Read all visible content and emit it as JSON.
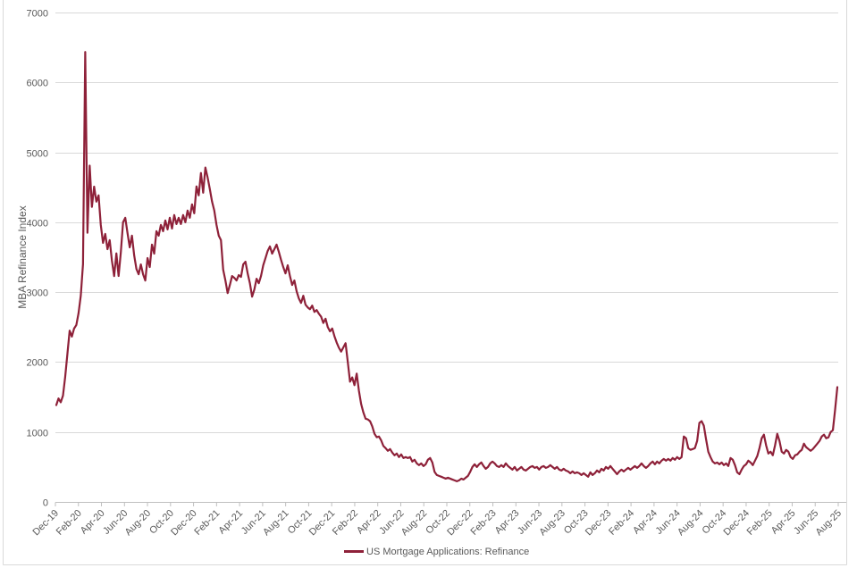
{
  "chart_data": {
    "type": "line",
    "title": "",
    "xlabel": "",
    "ylabel": "MBA Refinance Index",
    "ylim": [
      0,
      7000
    ],
    "yticks": [
      0,
      1000,
      2000,
      3000,
      4000,
      5000,
      6000,
      7000
    ],
    "x_tick_labels": [
      "Dec-19",
      "Feb-20",
      "Apr-20",
      "Jun-20",
      "Aug-20",
      "Oct-20",
      "Dec-20",
      "Feb-21",
      "Apr-21",
      "Jun-21",
      "Aug-21",
      "Oct-21",
      "Dec-21",
      "Feb-22",
      "Apr-22",
      "Jun-22",
      "Aug-22",
      "Oct-22",
      "Dec-22",
      "Feb-23",
      "Apr-23",
      "Jun-23",
      "Aug-23",
      "Oct-23",
      "Dec-23",
      "Feb-24",
      "Apr-24",
      "Jun-24",
      "Aug-24",
      "Oct-24",
      "Dec-24",
      "Feb-25",
      "Apr-25",
      "Jun-25",
      "Aug-25"
    ],
    "grid": "horizontal gridlines",
    "legend_position": "bottom center",
    "legend_label": "US Mortgage Applications: Refinance",
    "series": [
      {
        "name": "US Mortgage Applications: Refinance",
        "color": "#8E2139",
        "x_unit": "weekly observations, Dec 2019 - Aug 2025",
        "values": [
          1385,
          1480,
          1425,
          1520,
          1790,
          2120,
          2450,
          2365,
          2480,
          2530,
          2700,
          2950,
          3400,
          6435,
          3850,
          4810,
          4220,
          4510,
          4295,
          4385,
          3960,
          3705,
          3833,
          3615,
          3744,
          3449,
          3230,
          3555,
          3231,
          3570,
          4000,
          4064,
          3846,
          3641,
          3808,
          3526,
          3333,
          3256,
          3397,
          3256,
          3167,
          3487,
          3359,
          3680,
          3551,
          3872,
          3808,
          3962,
          3872,
          4026,
          3897,
          4064,
          3910,
          4103,
          3974,
          4064,
          3974,
          4103,
          4000,
          4167,
          4064,
          4256,
          4128,
          4513,
          4385,
          4705,
          4423,
          4782,
          4641,
          4474,
          4295,
          4167,
          3962,
          3808,
          3744,
          3321,
          3167,
          2987,
          3103,
          3231,
          3205,
          3167,
          3244,
          3218,
          3397,
          3436,
          3269,
          3128,
          2936,
          3038,
          3192,
          3128,
          3231,
          3385,
          3487,
          3590,
          3654,
          3551,
          3615,
          3680,
          3577,
          3462,
          3359,
          3269,
          3385,
          3231,
          3103,
          3167,
          3013,
          2910,
          2846,
          2949,
          2821,
          2782,
          2756,
          2808,
          2718,
          2744,
          2692,
          2650,
          2560,
          2620,
          2500,
          2440,
          2480,
          2370,
          2280,
          2205,
          2150,
          2210,
          2270,
          2000,
          1720,
          1780,
          1670,
          1835,
          1590,
          1400,
          1280,
          1190,
          1180,
          1155,
          1080,
          975,
          925,
          935,
          880,
          800,
          769,
          731,
          756,
          705,
          667,
          692,
          641,
          679,
          628,
          641,
          628,
          641,
          577,
          603,
          551,
          526,
          551,
          513,
          538,
          603,
          628,
          564,
          430,
          385,
          372,
          360,
          346,
          333,
          346,
          333,
          320,
          308,
          295,
          308,
          333,
          320,
          346,
          372,
          430,
          500,
          538,
          500,
          538,
          564,
          513,
          474,
          500,
          551,
          577,
          551,
          513,
          500,
          526,
          500,
          551,
          513,
          487,
          462,
          500,
          449,
          474,
          500,
          462,
          449,
          474,
          500,
          513,
          487,
          500,
          462,
          500,
          513,
          487,
          500,
          526,
          500,
          474,
          500,
          462,
          449,
          474,
          449,
          436,
          410,
          436,
          410,
          423,
          410,
          385,
          410,
          385,
          360,
          423,
          385,
          410,
          449,
          423,
          474,
          449,
          500,
          474,
          513,
          474,
          436,
          397,
          436,
          462,
          436,
          462,
          487,
          462,
          487,
          513,
          487,
          513,
          551,
          513,
          487,
          513,
          551,
          577,
          538,
          577,
          551,
          590,
          615,
          590,
          615,
          590,
          628,
          603,
          641,
          615,
          640,
          936,
          910,
          770,
          745,
          756,
          770,
          872,
          1130,
          1155,
          1090,
          897,
          718,
          641,
          577,
          551,
          564,
          538,
          564,
          526,
          551,
          513,
          628,
          603,
          526,
          423,
          397,
          462,
          513,
          538,
          590,
          564,
          526,
          590,
          654,
          769,
          910,
          962,
          808,
          692,
          718,
          667,
          808,
          974,
          872,
          718,
          692,
          744,
          718,
          641,
          615,
          667,
          679,
          718,
          744,
          833,
          782,
          756,
          731,
          756,
          795,
          833,
          872,
          936,
          962,
          910,
          923,
          1000,
          1026,
          1321,
          1641
        ]
      }
    ]
  },
  "colors": {
    "line": "#8E2139",
    "axis_text": "#595959",
    "gridline": "#D9D9D9",
    "axis_line": "#BFBFBF",
    "frame_border": "#D9D9D9",
    "background": "#FFFFFF"
  }
}
